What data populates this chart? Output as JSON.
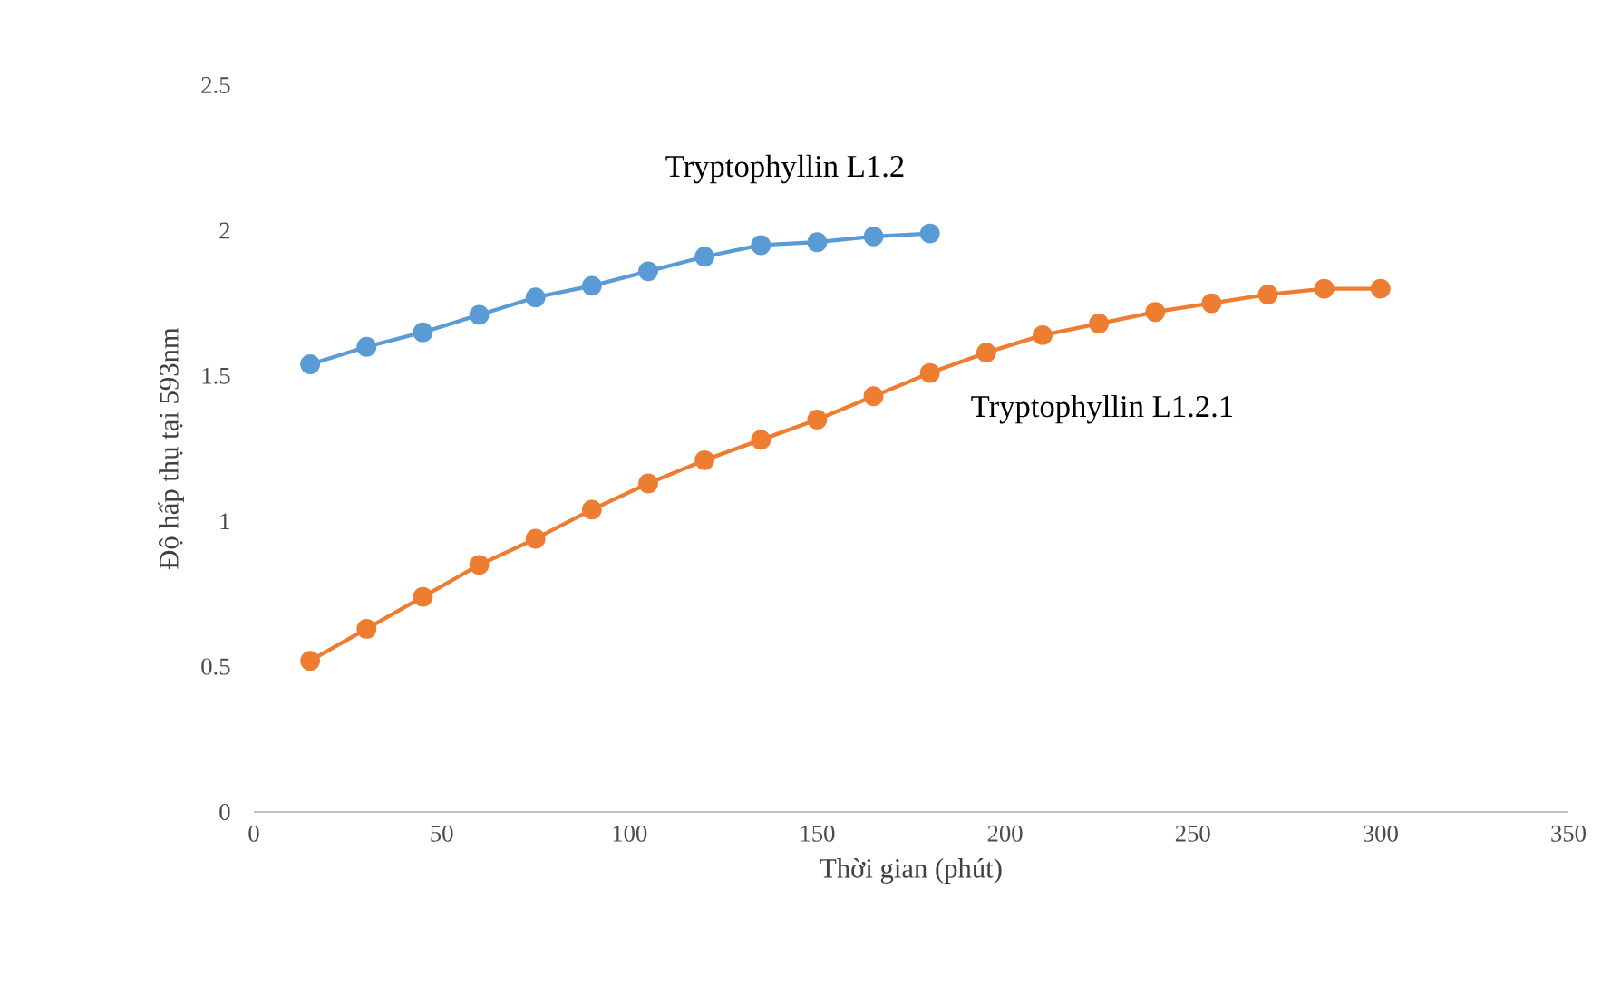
{
  "chart_data": {
    "type": "line",
    "xlabel": "Thời gian (phút)",
    "ylabel": "Độ hấp thụ tại 593nm",
    "xlim": [
      0,
      350
    ],
    "xticks": [
      0,
      50,
      100,
      150,
      200,
      250,
      300,
      350
    ],
    "ylim": [
      0,
      2.5
    ],
    "yticks": [
      0,
      0.5,
      1,
      1.5,
      2,
      2.5
    ],
    "grid": false,
    "legend": false,
    "marker": "circle",
    "line_style": "solid",
    "series": [
      {
        "name": "Tryptophyllin L1.2",
        "color": "#5b9bd5",
        "x": [
          15,
          30,
          45,
          60,
          75,
          90,
          105,
          120,
          135,
          150,
          165,
          180
        ],
        "values": [
          1.54,
          1.6,
          1.65,
          1.71,
          1.77,
          1.81,
          1.86,
          1.91,
          1.95,
          1.96,
          1.98,
          1.99
        ]
      },
      {
        "name": "Tryptophyllin L1.2.1",
        "color": "#ed7d31",
        "x": [
          15,
          30,
          45,
          60,
          75,
          90,
          105,
          120,
          135,
          150,
          165,
          180,
          195,
          210,
          225,
          240,
          255,
          270,
          285,
          300
        ],
        "values": [
          0.52,
          0.63,
          0.74,
          0.85,
          0.94,
          1.04,
          1.13,
          1.21,
          1.28,
          1.35,
          1.43,
          1.51,
          1.58,
          1.64,
          1.68,
          1.72,
          1.75,
          1.78,
          1.8,
          1.8
        ]
      }
    ]
  }
}
